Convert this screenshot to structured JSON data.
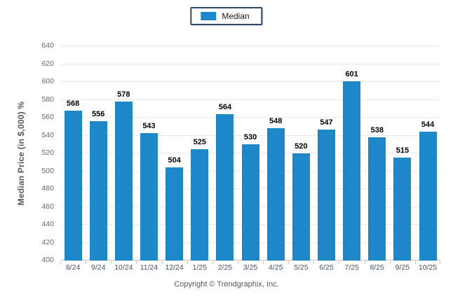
{
  "legend": {
    "label": "Median"
  },
  "chart_data": {
    "type": "bar",
    "title": "",
    "xlabel": "",
    "ylabel": "Median Price (in $,000) %",
    "categories": [
      "8/24",
      "9/24",
      "10/24",
      "11/24",
      "12/24",
      "1/25",
      "2/25",
      "3/25",
      "4/25",
      "5/25",
      "6/25",
      "7/25",
      "8/25",
      "9/25",
      "10/25"
    ],
    "series": [
      {
        "name": "Median",
        "values": [
          568,
          556,
          578,
          543,
          504,
          525,
          564,
          530,
          548,
          520,
          547,
          601,
          538,
          515,
          544
        ]
      }
    ],
    "values": [
      568,
      556,
      578,
      543,
      504,
      525,
      564,
      530,
      548,
      520,
      547,
      601,
      538,
      515,
      544
    ],
    "ylim": [
      400,
      640
    ],
    "yticks": [
      400,
      420,
      440,
      460,
      480,
      500,
      520,
      540,
      560,
      580,
      600,
      620,
      640
    ],
    "grid": true,
    "legend_position": "top-center",
    "bar_color": "#1e87c8",
    "gridline_color": "#e9e9e9",
    "axis_line_color": "#c4c4c4"
  },
  "footer": {
    "copyright": "Copyright © Trendgraphix, Inc."
  }
}
